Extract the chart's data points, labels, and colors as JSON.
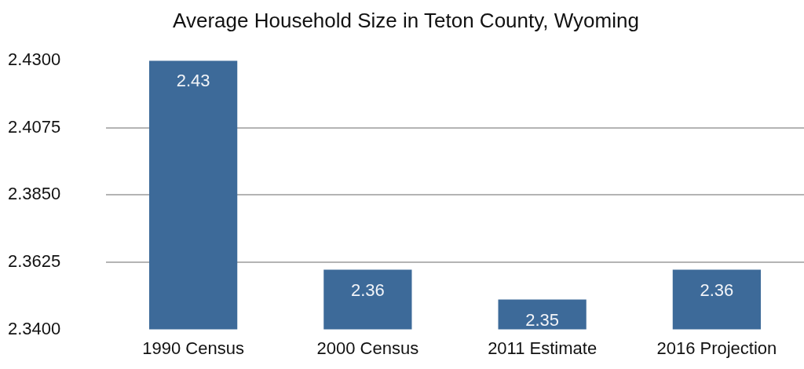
{
  "chart_data": {
    "type": "bar",
    "title": "Average Household Size in Teton County, Wyoming",
    "categories": [
      "1990 Census",
      "2000 Census",
      "2011 Estimate",
      "2016 Projection"
    ],
    "values": [
      2.43,
      2.36,
      2.35,
      2.36
    ],
    "color": "#3d6a99",
    "ylim": [
      2.34,
      2.43
    ],
    "yticks": [
      {
        "value": 2.34,
        "label": "2.3400"
      },
      2.3625,
      {
        "value": 2.385,
        "label": "2.3850"
      },
      2.4075,
      {
        "value": 2.43,
        "label": "2.4300"
      }
    ],
    "grid": "y",
    "data_labels": true
  }
}
